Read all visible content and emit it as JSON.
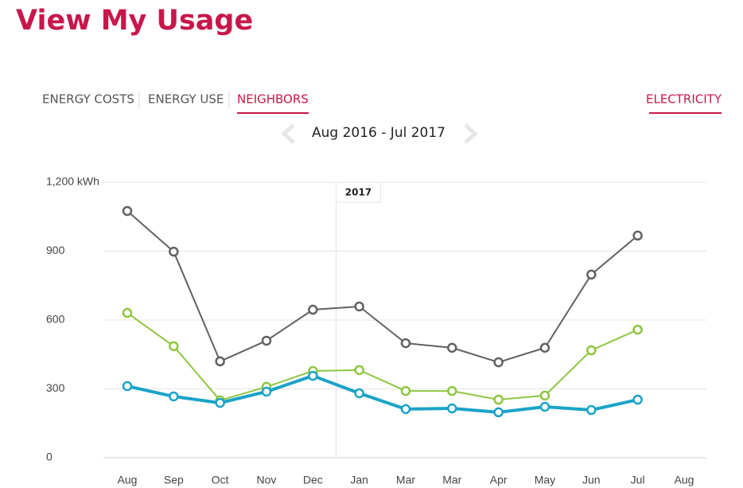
{
  "header": {
    "title": "View My Usage"
  },
  "tabs": [
    "ENERGY COSTS",
    "ENERGY USE",
    "NEIGHBORS"
  ],
  "fuel_tab": "ELECTRICITY",
  "date_range": "Aug 2016 - Jul 2017",
  "chart_data": {
    "type": "line",
    "annotation": "2017",
    "categories": [
      "Aug",
      "Sep",
      "Oct",
      "Nov",
      "Dec",
      "Jan",
      "Mar",
      "Mar",
      "Apr",
      "May",
      "Jun",
      "Jul",
      "Aug"
    ],
    "series": [
      {
        "color": "#616161",
        "values": [
          1075,
          898,
          420,
          510,
          645,
          659,
          499,
          479,
          416,
          479,
          798,
          968,
          null
        ]
      },
      {
        "color": "#8dc63f",
        "values": [
          631,
          486,
          250,
          309,
          378,
          382,
          291,
          291,
          253,
          271,
          468,
          558,
          null
        ]
      },
      {
        "color": "#1aa3c8",
        "values": [
          312,
          267,
          239,
          288,
          357,
          281,
          212,
          215,
          198,
          222,
          208,
          253,
          null
        ]
      }
    ],
    "ylim": [
      0,
      1200
    ],
    "yticks": [
      0,
      300,
      600,
      900,
      {
        "value": 1200,
        "label": "1,200 kWh"
      }
    ],
    "grid": true
  }
}
